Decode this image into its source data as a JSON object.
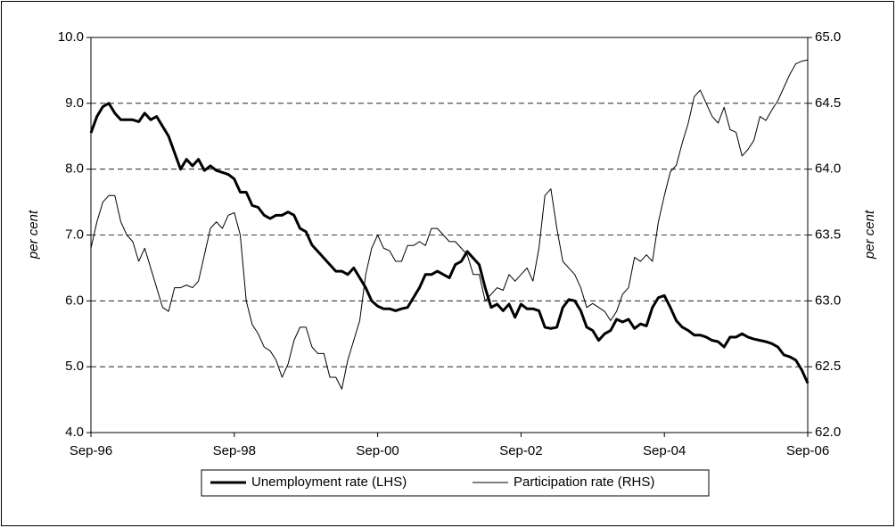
{
  "chart_data": {
    "type": "line",
    "categories": [
      "Sep-96",
      null,
      null,
      null,
      null,
      null,
      null,
      null,
      null,
      null,
      null,
      null,
      null,
      null,
      null,
      null,
      null,
      null,
      null,
      null,
      null,
      null,
      null,
      null,
      "Sep-98",
      null,
      null,
      null,
      null,
      null,
      null,
      null,
      null,
      null,
      null,
      null,
      null,
      null,
      null,
      null,
      null,
      null,
      null,
      null,
      null,
      null,
      null,
      null,
      "Sep-00",
      null,
      null,
      null,
      null,
      null,
      null,
      null,
      null,
      null,
      null,
      null,
      null,
      null,
      null,
      null,
      null,
      null,
      null,
      null,
      null,
      null,
      null,
      null,
      "Sep-02",
      null,
      null,
      null,
      null,
      null,
      null,
      null,
      null,
      null,
      null,
      null,
      null,
      null,
      null,
      null,
      null,
      null,
      null,
      null,
      null,
      null,
      null,
      null,
      "Sep-04",
      null,
      null,
      null,
      null,
      null,
      null,
      null,
      null,
      null,
      null,
      null,
      null,
      null,
      null,
      null,
      null,
      null,
      null,
      null,
      null,
      null,
      null,
      null,
      "Sep-06"
    ],
    "series": [
      {
        "name": "Unemployment rate (LHS)",
        "color": "#000000",
        "values": [
          8.55,
          8.8,
          8.95,
          9.0,
          8.85,
          8.75,
          8.75,
          8.75,
          8.72,
          8.85,
          8.75,
          8.8,
          8.65,
          8.5,
          8.25,
          8.0,
          8.15,
          8.05,
          8.15,
          7.98,
          8.05,
          7.98,
          7.95,
          7.92,
          7.85,
          7.65,
          7.65,
          7.45,
          7.42,
          7.3,
          7.25,
          7.3,
          7.3,
          7.35,
          7.3,
          7.1,
          7.05,
          6.85,
          6.75,
          6.65,
          6.55,
          6.45,
          6.45,
          6.4,
          6.5,
          6.35,
          6.2,
          6.0,
          5.92,
          5.88,
          5.88,
          5.85,
          5.88,
          5.9,
          6.05,
          6.2,
          6.4,
          6.4,
          6.45,
          6.4,
          6.35,
          6.55,
          6.6,
          6.75,
          6.65,
          6.55,
          6.2,
          5.9,
          5.95,
          5.85,
          5.95,
          5.75,
          5.95,
          5.88,
          5.88,
          5.85,
          5.6,
          5.58,
          5.6,
          5.9,
          6.02,
          6.0,
          5.85,
          5.6,
          5.55,
          5.4,
          5.5,
          5.55,
          5.72,
          5.68,
          5.72,
          5.58,
          5.65,
          5.62,
          5.9,
          6.05,
          6.08,
          5.9,
          5.7,
          5.6,
          5.55,
          5.48,
          5.48,
          5.45,
          5.4,
          5.38,
          5.3,
          5.45,
          5.45,
          5.5,
          5.45,
          5.42,
          5.4,
          5.38,
          5.35,
          5.3,
          5.18,
          5.15,
          5.1,
          4.95,
          4.75
        ]
      },
      {
        "name": "Participation rate (RHS)",
        "color": "#000000",
        "axis": "y2",
        "values": [
          63.4,
          63.6,
          63.75,
          63.8,
          63.8,
          63.6,
          63.5,
          63.45,
          63.3,
          63.4,
          63.25,
          63.1,
          62.95,
          62.92,
          63.1,
          63.1,
          63.12,
          63.1,
          63.15,
          63.35,
          63.55,
          63.6,
          63.55,
          63.65,
          63.67,
          63.5,
          63.0,
          62.82,
          62.75,
          62.65,
          62.62,
          62.55,
          62.42,
          62.52,
          62.7,
          62.8,
          62.8,
          62.65,
          62.6,
          62.6,
          62.42,
          62.42,
          62.33,
          62.55,
          62.7,
          62.85,
          63.2,
          63.4,
          63.5,
          63.4,
          63.38,
          63.3,
          63.3,
          63.42,
          63.42,
          63.45,
          63.42,
          63.55,
          63.55,
          63.5,
          63.45,
          63.45,
          63.4,
          63.35,
          63.2,
          63.2,
          63.0,
          63.05,
          63.1,
          63.08,
          63.2,
          63.15,
          63.2,
          63.25,
          63.15,
          63.4,
          63.8,
          63.85,
          63.55,
          63.3,
          63.25,
          63.2,
          63.1,
          62.95,
          62.98,
          62.95,
          62.92,
          62.85,
          62.92,
          63.05,
          63.1,
          63.33,
          63.3,
          63.35,
          63.3,
          63.6,
          63.8,
          63.98,
          64.03,
          64.2,
          64.35,
          64.55,
          64.6,
          64.5,
          64.4,
          64.35,
          64.47,
          64.3,
          64.28,
          64.1,
          64.15,
          64.22,
          64.4,
          64.37,
          64.45,
          64.52,
          64.62,
          64.72,
          64.8,
          64.82,
          64.83
        ]
      }
    ],
    "ylabel": "per cent",
    "y2label": "per cent",
    "ylim": [
      4,
      10
    ],
    "yticks": [
      {
        "value": 4,
        "label": "4.0"
      },
      {
        "value": 5,
        "label": "5.0"
      },
      {
        "value": 6,
        "label": "6.0"
      },
      {
        "value": 7,
        "label": "7.0"
      },
      {
        "value": 8,
        "label": "8.0"
      },
      {
        "value": 9,
        "label": "9.0"
      },
      {
        "value": 10,
        "label": "10.0"
      }
    ],
    "y2lim": [
      62,
      65
    ],
    "y2ticks": [
      {
        "value": 62,
        "label": "62.0"
      },
      {
        "value": 62.5,
        "label": "62.5"
      },
      {
        "value": 63,
        "label": "63.0"
      },
      {
        "value": 63.5,
        "label": "63.5"
      },
      {
        "value": 64,
        "label": "64.0"
      },
      {
        "value": 64.5,
        "label": "64.5"
      },
      {
        "value": 65,
        "label": "65.0"
      }
    ],
    "grid": true,
    "legend": "bottom"
  }
}
